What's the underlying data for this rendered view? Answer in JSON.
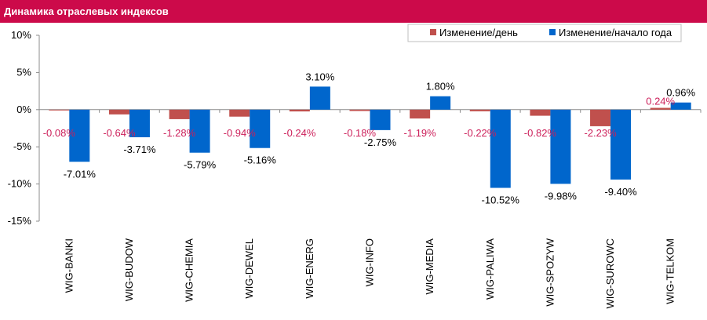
{
  "header": {
    "title": "Динамика отраслевых индексов"
  },
  "colors": {
    "title_bg": "#cc0a4a",
    "day": "#c0504d",
    "ytd": "#0066cc",
    "day_label": "#cc1f5a"
  },
  "chart_data": {
    "type": "bar",
    "title": "Динамика отраслевых индексов",
    "categories": [
      "WIG-BANKI",
      "WIG-BUDOW",
      "WIG-CHEMIA",
      "WIG-DEWEL",
      "WIG-ENERG",
      "WIG-INFO",
      "WIG-MEDIA",
      "WIG-PALIWA",
      "WIG-SPOZYW",
      "WIG-SUROWC",
      "WIG-TELKOM"
    ],
    "series": [
      {
        "name": "Изменение/день",
        "values": [
          -0.08,
          -0.64,
          -1.28,
          -0.94,
          -0.24,
          -0.18,
          -1.19,
          -0.22,
          -0.82,
          -2.23,
          0.24
        ],
        "labels": [
          "-0.08%",
          "-0.64%",
          "-1.28%",
          "-0.94%",
          "-0.24%",
          "-0.18%",
          "-1.19%",
          "-0.22%",
          "-0.82%",
          "-2.23%",
          "0.24%"
        ]
      },
      {
        "name": "Изменение/начало года",
        "values": [
          -7.01,
          -3.71,
          -5.79,
          -5.16,
          3.1,
          -2.75,
          1.8,
          -10.52,
          -9.98,
          -9.4,
          0.96
        ],
        "labels": [
          "-7.01%",
          "-3.71%",
          "-5.79%",
          "-5.16%",
          "3.10%",
          "-2.75%",
          "1.80%",
          "-10.52%",
          "-9.98%",
          "-9.40%",
          "0.96%"
        ]
      }
    ],
    "y_ticks": [
      10,
      5,
      0,
      -5,
      -10,
      -15
    ],
    "y_tick_labels": [
      "10%",
      "5%",
      "0%",
      "-5%",
      "-10%",
      "-15%"
    ],
    "ylim": [
      -15,
      10
    ],
    "grid": false,
    "legend_position": "top-right"
  }
}
